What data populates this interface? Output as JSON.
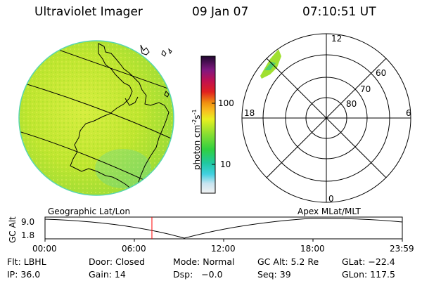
{
  "header": {
    "title": "Ultraviolet Imager",
    "date": "09 Jan 07",
    "time": "07:10:51 UT"
  },
  "colorbar": {
    "label": "photon cm",
    "label_exp1": "-2",
    "label_s": "s",
    "label_exp2": "-1",
    "tick_100": "100",
    "tick_10": "10"
  },
  "polar_plot": {
    "mlt_top": "12",
    "mlt_left": "18",
    "mlt_right": "6",
    "mlt_bottom": "0",
    "lat_60": "60",
    "lat_70": "70",
    "lat_80": "80"
  },
  "altitude_plot": {
    "label_geo": "Geographic Lat/Lon",
    "label_apex": "Apex  MLat/MLT",
    "ylabel": "GC Alt",
    "y_top": "9.0",
    "y_bottom": "1.8",
    "x_ticks": [
      "00:00",
      "06:00",
      "12:00",
      "18:00",
      "23:59"
    ],
    "marker_time_hours": 7.18,
    "colors": {
      "marker": "#ff0000",
      "line": "#000000"
    }
  },
  "info": {
    "flt": "Flt: LBHL",
    "door": "Door: Closed",
    "mode": "Mode: Normal",
    "gc_alt": "GC Alt: 5.2 Re",
    "glat": "GLat: −22.4",
    "ip": "IP: 36.0",
    "gain": "Gain: 14",
    "dsp": "Dsp:   −0.0",
    "seq": "Seq: 39",
    "glon": "GLon: 117.5"
  },
  "colors": {
    "disk_fill": "#bfe830",
    "disk_edge": "#58d6b0"
  }
}
